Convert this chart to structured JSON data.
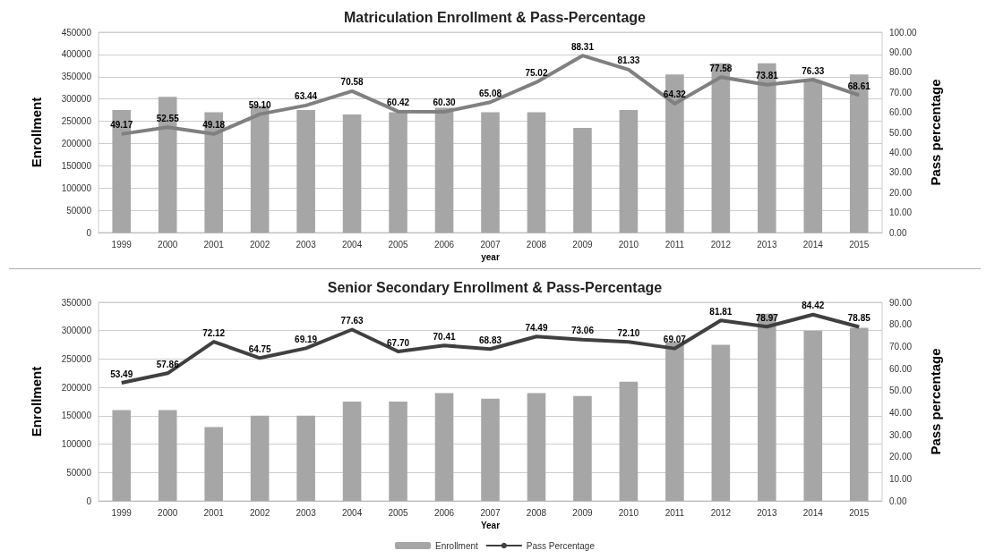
{
  "chart_data": [
    {
      "type": "bar",
      "title": "Matriculation Enrollment & Pass-Percentage",
      "xlabel": "year",
      "ylabel": "Enrollment",
      "y2label": "Pass percentage",
      "categories": [
        "1999",
        "2000",
        "2001",
        "2002",
        "2003",
        "2004",
        "2005",
        "2006",
        "2007",
        "2008",
        "2009",
        "2010",
        "2011",
        "2012",
        "2013",
        "2014",
        "2015"
      ],
      "series": [
        {
          "color": "#a6a6a6",
          "values": [
            275000,
            305000,
            270000,
            285000,
            275000,
            265000,
            270000,
            280000,
            270000,
            270000,
            235000,
            275000,
            355000,
            380000,
            380000,
            340000,
            355000
          ]
        },
        {
          "type": "line",
          "axis": "y2",
          "color": "#808080",
          "values": [
            49.17,
            52.55,
            49.18,
            59.1,
            63.44,
            70.58,
            60.42,
            60.3,
            65.08,
            75.02,
            88.31,
            81.33,
            64.32,
            77.58,
            73.81,
            76.33,
            68.61
          ],
          "value_labels": [
            "49.17",
            "52.55",
            "49.18",
            "59.10",
            "63.44",
            "70.58",
            "60.42",
            "60.30",
            "65.08",
            "75.02",
            "88.31",
            "81.33",
            "64.32",
            "77.58",
            "73.81",
            "76.33",
            "68.61"
          ]
        }
      ],
      "ylim": [
        0,
        450000
      ],
      "yticks": [
        0,
        50000,
        100000,
        150000,
        200000,
        250000,
        300000,
        350000,
        400000,
        450000
      ],
      "y2lim": [
        0,
        100
      ],
      "y2ticks": [
        {
          "value": 0,
          "label": "0.00"
        },
        {
          "value": 10,
          "label": "10.00"
        },
        {
          "value": 20,
          "label": "20.00"
        },
        {
          "value": 30,
          "label": "30.00"
        },
        {
          "value": 40,
          "label": "40.00"
        },
        {
          "value": 50,
          "label": "50.00"
        },
        {
          "value": 60,
          "label": "60.00"
        },
        {
          "value": 70,
          "label": "70.00"
        },
        {
          "value": 80,
          "label": "80.00"
        },
        {
          "value": 90,
          "label": "90.00"
        },
        {
          "value": 100,
          "label": "100.00"
        }
      ],
      "grid": "y",
      "marker": "none"
    },
    {
      "type": "bar",
      "title": "Senior Secondary Enrollment & Pass-Percentage",
      "xlabel": "Year",
      "ylabel": "Enrollment",
      "y2label": "Pass percentage",
      "categories": [
        "1999",
        "2000",
        "2001",
        "2002",
        "2003",
        "2004",
        "2005",
        "2006",
        "2007",
        "2008",
        "2009",
        "2010",
        "2011",
        "2012",
        "2013",
        "2014",
        "2015"
      ],
      "series": [
        {
          "name": "Enrollment",
          "color": "#a6a6a6",
          "values": [
            160000,
            160000,
            130000,
            150000,
            150000,
            175000,
            175000,
            190000,
            180000,
            190000,
            185000,
            210000,
            280000,
            275000,
            330000,
            300000,
            305000
          ]
        },
        {
          "type": "line",
          "axis": "y2",
          "name": "Pass Percentage",
          "color": "#404040",
          "values": [
            53.49,
            57.86,
            72.12,
            64.75,
            69.19,
            77.63,
            67.7,
            70.41,
            68.83,
            74.49,
            73.06,
            72.1,
            69.07,
            81.81,
            78.97,
            84.42,
            78.85
          ],
          "value_labels": [
            "53.49",
            "57.86",
            "72.12",
            "64.75",
            "69.19",
            "77.63",
            "67.70",
            "70.41",
            "68.83",
            "74.49",
            "73.06",
            "72.10",
            "69.07",
            "81.81",
            "78.97",
            "84.42",
            "78.85"
          ]
        }
      ],
      "ylim": [
        0,
        350000
      ],
      "yticks": [
        0,
        50000,
        100000,
        150000,
        200000,
        250000,
        300000,
        350000
      ],
      "y2lim": [
        0,
        90
      ],
      "y2ticks": [
        {
          "value": 0,
          "label": "0.00"
        },
        {
          "value": 10,
          "label": "10.00"
        },
        {
          "value": 20,
          "label": "20.00"
        },
        {
          "value": 30,
          "label": "30.00"
        },
        {
          "value": 40,
          "label": "40.00"
        },
        {
          "value": 50,
          "label": "50.00"
        },
        {
          "value": 60,
          "label": "60.00"
        },
        {
          "value": 70,
          "label": "70.00"
        },
        {
          "value": 80,
          "label": "80.00"
        },
        {
          "value": 90,
          "label": "90.00"
        }
      ],
      "grid": "y",
      "marker": "none",
      "legend": "bottom"
    }
  ]
}
